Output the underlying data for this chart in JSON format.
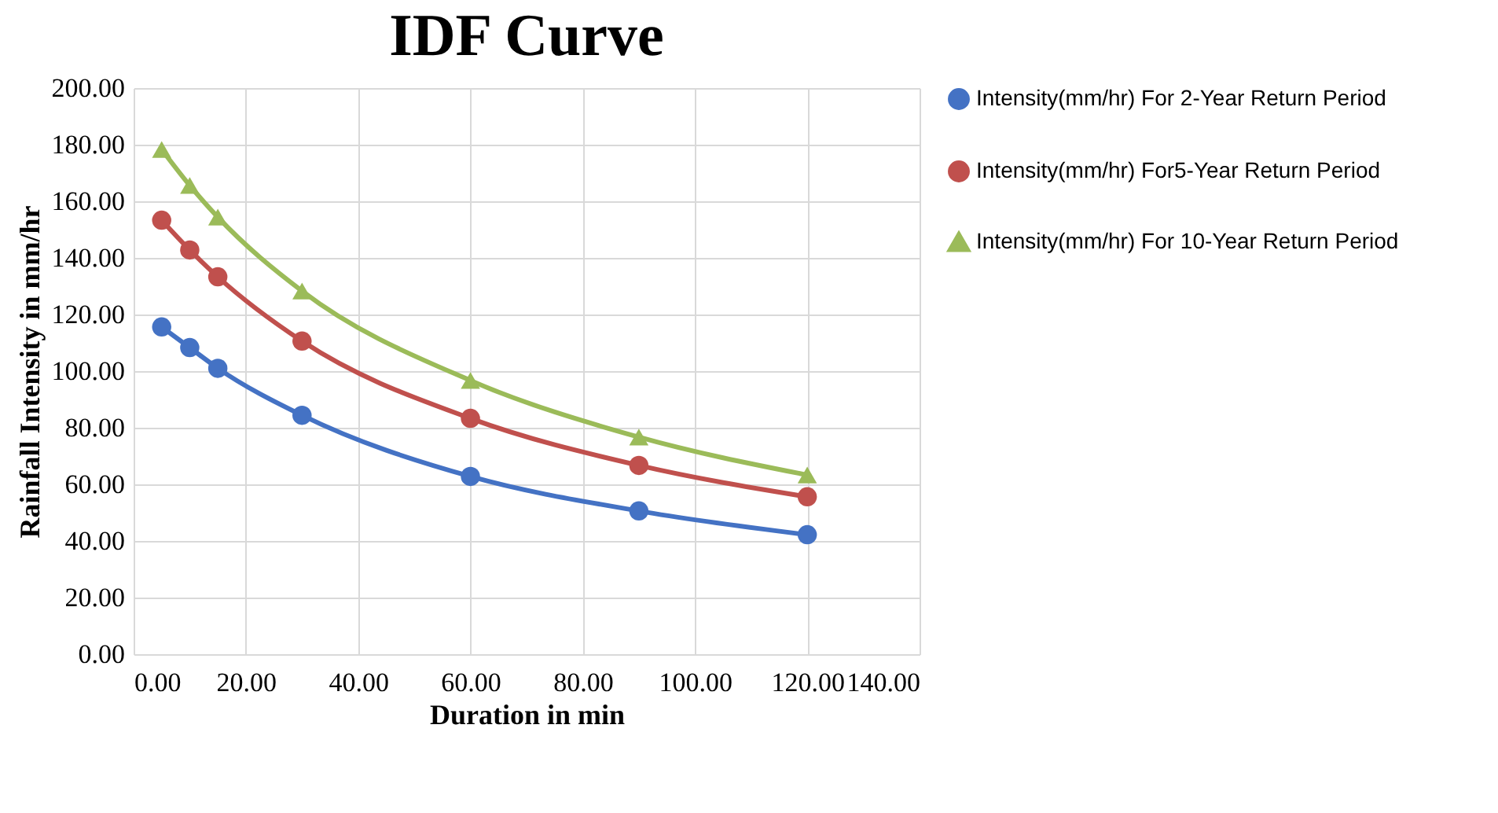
{
  "chart_data": {
    "type": "line",
    "title": "IDF Curve",
    "xlabel": "Duration in min",
    "ylabel": "Rainfall Intensity in mm/hr",
    "x": [
      5,
      10,
      15,
      30,
      60,
      90,
      120
    ],
    "series": [
      {
        "name": "Intensity(mm/hr) For 2-Year Return Period",
        "color": "#4472c4",
        "marker": "circle",
        "values": [
          115.6,
          108.3,
          101,
          84.4,
          62.8,
          50.6,
          42.2
        ]
      },
      {
        "name": "Intensity(mm/hr) For5-Year Return Period",
        "color": "#c0504d",
        "marker": "circle",
        "values": [
          153.3,
          142.8,
          133.3,
          110.6,
          83.3,
          66.7,
          55.6
        ]
      },
      {
        "name": "Intensity(mm/hr) For 10-Year Return Period",
        "color": "#9bbb59",
        "marker": "triangle",
        "values": [
          178.3,
          165.6,
          154.4,
          128.3,
          96.7,
          76.7,
          63.3
        ]
      }
    ],
    "xlim": [
      0,
      140
    ],
    "xticks": [
      {
        "value": 0,
        "label": "0.00"
      },
      {
        "value": 20,
        "label": "20.00"
      },
      {
        "value": 40,
        "label": "40.00"
      },
      {
        "value": 60,
        "label": "60.00"
      },
      {
        "value": 80,
        "label": "80.00"
      },
      {
        "value": 100,
        "label": "100.00"
      },
      {
        "value": 120,
        "label": "120.00"
      },
      {
        "value": 140,
        "label": "140.00"
      }
    ],
    "ylim": [
      0,
      200
    ],
    "yticks": [
      {
        "value": 0,
        "label": "0.00"
      },
      {
        "value": 20,
        "label": "20.00"
      },
      {
        "value": 40,
        "label": "40.00"
      },
      {
        "value": 60,
        "label": "60.00"
      },
      {
        "value": 80,
        "label": "80.00"
      },
      {
        "value": 100,
        "label": "100.00"
      },
      {
        "value": 120,
        "label": "120.00"
      },
      {
        "value": 140,
        "label": "140.00"
      },
      {
        "value": 160,
        "label": "160.00"
      },
      {
        "value": 180,
        "label": "180.00"
      },
      {
        "value": 200,
        "label": "200.00"
      }
    ],
    "grid": true,
    "legend": "right",
    "line_style": "solid"
  }
}
